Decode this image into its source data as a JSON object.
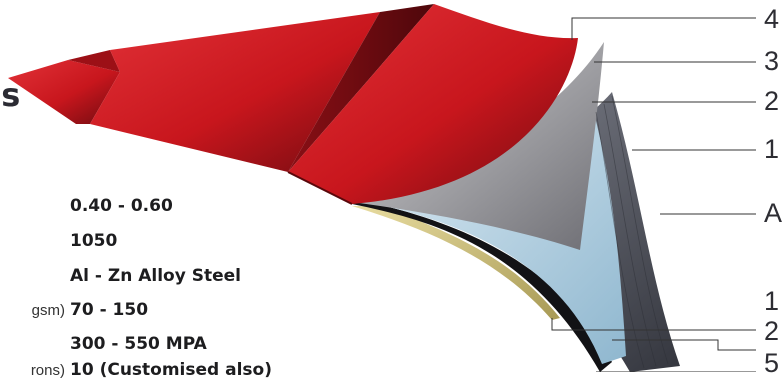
{
  "heading": "ns",
  "specs": [
    {
      "label": "",
      "value": "0.40 - 0.60"
    },
    {
      "label": "",
      "value": "1050"
    },
    {
      "label": "",
      "value": "Al - Zn Alloy Steel"
    },
    {
      "label": "gsm)",
      "value": "70 - 150"
    },
    {
      "label": "",
      "value": "300 - 550 MPA"
    },
    {
      "label": "rons)",
      "value": "10 (Customised also)"
    }
  ],
  "layer_callouts": [
    "4",
    "3",
    "2",
    "1",
    "A",
    "1",
    "2",
    "5"
  ],
  "colors": {
    "roof_red": "#c8161d",
    "roof_dark": "#7a0d12",
    "layer_grey": "#9a9a9e",
    "layer_light_blue": "#bcd6e6",
    "layer_steel": "#5a5d68",
    "layer_black": "#111114",
    "layer_gold": "#cdbf7e"
  }
}
